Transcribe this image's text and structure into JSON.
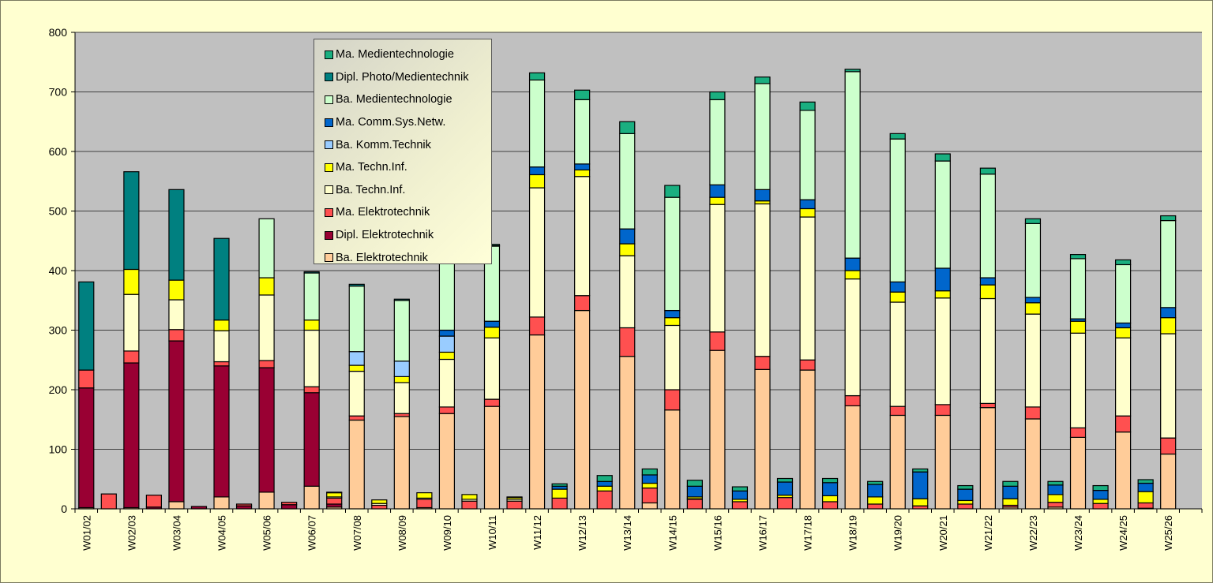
{
  "chart_data": {
    "type": "bar",
    "stacked": true,
    "title": "",
    "xlabel": "",
    "ylabel": "",
    "ylim": [
      0,
      800
    ],
    "yticks": [
      "0",
      "100",
      "200",
      "300",
      "400",
      "500",
      "600",
      "700",
      "800"
    ],
    "grid": true,
    "legend_position": "top-left",
    "series": [
      {
        "name": "Ba. Elektrotechnik",
        "color": "#FFCC99"
      },
      {
        "name": "Dipl. Elektrotechnik",
        "color": "#990033"
      },
      {
        "name": "Ma. Elektrotechnik",
        "color": "#FF5050"
      },
      {
        "name": "Ba. Techn.Inf.",
        "color": "#FFFFCC"
      },
      {
        "name": "Ma. Techn.Inf.",
        "color": "#FFFF00"
      },
      {
        "name": "Ba. Komm.Technik",
        "color": "#99CCFF"
      },
      {
        "name": "Ma. Comm.Sys.Netw.",
        "color": "#0066CC"
      },
      {
        "name": "Ba. Medientechnologie",
        "color": "#CCFFCC"
      },
      {
        "name": "Dipl. Photo/Medientechnik",
        "color": "#008080"
      },
      {
        "name": "Ma. Medientechnologie",
        "color": "#1AAF80"
      }
    ],
    "bars": [
      {
        "category": "W01/02",
        "values": [
          2,
          201,
          30,
          0,
          0,
          0,
          0,
          0,
          148,
          0
        ]
      },
      {
        "category": "",
        "values": [
          0,
          0,
          25,
          0,
          0,
          0,
          0,
          0,
          0,
          0
        ]
      },
      {
        "category": "W02/03",
        "values": [
          2,
          243,
          20,
          95,
          42,
          0,
          0,
          0,
          164,
          0
        ]
      },
      {
        "category": "",
        "values": [
          0,
          3,
          20,
          0,
          0,
          0,
          0,
          0,
          0,
          0
        ]
      },
      {
        "category": "W03/04",
        "values": [
          12,
          270,
          19,
          50,
          33,
          0,
          0,
          0,
          152,
          0
        ]
      },
      {
        "category": "",
        "values": [
          0,
          4,
          0,
          0,
          0,
          0,
          0,
          0,
          0,
          0
        ]
      },
      {
        "category": "W04/05",
        "values": [
          20,
          220,
          7,
          52,
          18,
          0,
          0,
          0,
          137,
          0
        ]
      },
      {
        "category": "",
        "values": [
          0,
          5,
          3,
          0,
          0,
          0,
          0,
          0,
          0,
          0
        ]
      },
      {
        "category": "W05/06",
        "values": [
          28,
          209,
          12,
          110,
          29,
          0,
          0,
          99,
          0,
          0
        ]
      },
      {
        "category": "",
        "values": [
          0,
          7,
          4,
          0,
          0,
          0,
          0,
          0,
          0,
          0
        ]
      },
      {
        "category": "W06/07",
        "values": [
          38,
          157,
          10,
          95,
          17,
          0,
          0,
          79,
          2,
          0
        ]
      },
      {
        "category": "",
        "values": [
          3,
          5,
          10,
          2,
          7,
          0,
          0,
          0,
          1,
          0
        ]
      },
      {
        "category": "W07/08",
        "values": [
          149,
          0,
          7,
          75,
          10,
          23,
          0,
          110,
          3,
          0
        ]
      },
      {
        "category": "",
        "values": [
          0,
          0,
          6,
          3,
          6,
          0,
          0,
          0,
          0,
          0
        ]
      },
      {
        "category": "W08/09",
        "values": [
          155,
          0,
          5,
          52,
          10,
          26,
          0,
          102,
          2,
          0
        ]
      },
      {
        "category": "",
        "values": [
          2,
          0,
          14,
          2,
          9,
          0,
          0,
          0,
          0,
          0
        ]
      },
      {
        "category": "W09/10",
        "values": [
          160,
          0,
          11,
          80,
          12,
          27,
          10,
          128,
          2,
          0
        ]
      },
      {
        "category": "",
        "values": [
          0,
          0,
          13,
          3,
          8,
          0,
          0,
          0,
          0,
          0
        ]
      },
      {
        "category": "W10/11",
        "values": [
          172,
          0,
          12,
          103,
          18,
          0,
          10,
          126,
          1,
          2
        ]
      },
      {
        "category": "",
        "values": [
          0,
          0,
          13,
          3,
          3,
          0,
          0,
          0,
          1,
          0
        ]
      },
      {
        "category": "W11/12",
        "values": [
          292,
          0,
          30,
          217,
          22,
          0,
          13,
          146,
          0,
          12
        ]
      },
      {
        "category": "",
        "values": [
          0,
          0,
          18,
          0,
          15,
          0,
          5,
          0,
          0,
          4
        ]
      },
      {
        "category": "W12/13",
        "values": [
          333,
          0,
          25,
          200,
          11,
          0,
          10,
          108,
          0,
          16
        ]
      },
      {
        "category": "",
        "values": [
          0,
          0,
          30,
          0,
          8,
          0,
          8,
          0,
          0,
          10
        ]
      },
      {
        "category": "W13/14",
        "values": [
          256,
          0,
          48,
          121,
          20,
          0,
          25,
          160,
          0,
          20
        ]
      },
      {
        "category": "",
        "values": [
          10,
          0,
          25,
          0,
          8,
          0,
          14,
          0,
          0,
          10
        ]
      },
      {
        "category": "W14/15",
        "values": [
          166,
          0,
          34,
          108,
          13,
          0,
          12,
          190,
          0,
          20
        ]
      },
      {
        "category": "",
        "values": [
          0,
          0,
          16,
          1,
          3,
          0,
          18,
          0,
          0,
          10
        ]
      },
      {
        "category": "W15/16",
        "values": [
          266,
          0,
          31,
          214,
          12,
          0,
          21,
          143,
          0,
          13
        ]
      },
      {
        "category": "",
        "values": [
          0,
          0,
          12,
          0,
          4,
          0,
          14,
          0,
          0,
          7
        ]
      },
      {
        "category": "W16/17",
        "values": [
          234,
          0,
          22,
          256,
          5,
          0,
          19,
          178,
          0,
          11
        ]
      },
      {
        "category": "",
        "values": [
          0,
          0,
          19,
          0,
          4,
          0,
          22,
          0,
          0,
          6
        ]
      },
      {
        "category": "W17/18",
        "values": [
          233,
          0,
          17,
          240,
          14,
          0,
          15,
          150,
          0,
          14
        ]
      },
      {
        "category": "",
        "values": [
          0,
          0,
          12,
          0,
          10,
          0,
          22,
          0,
          0,
          7
        ]
      },
      {
        "category": "W18/19",
        "values": [
          173,
          0,
          17,
          196,
          14,
          0,
          21,
          313,
          0,
          4
        ]
      },
      {
        "category": "",
        "values": [
          0,
          0,
          8,
          0,
          12,
          0,
          21,
          0,
          0,
          5
        ]
      },
      {
        "category": "W19/20",
        "values": [
          157,
          0,
          15,
          175,
          17,
          0,
          17,
          240,
          0,
          9
        ]
      },
      {
        "category": "",
        "values": [
          0,
          0,
          5,
          0,
          12,
          0,
          45,
          0,
          0,
          5
        ]
      },
      {
        "category": "W20/21",
        "values": [
          157,
          0,
          18,
          179,
          12,
          0,
          38,
          180,
          0,
          12
        ]
      },
      {
        "category": "",
        "values": [
          0,
          0,
          8,
          0,
          6,
          0,
          19,
          0,
          0,
          6
        ]
      },
      {
        "category": "W21/22",
        "values": [
          170,
          0,
          7,
          176,
          23,
          0,
          12,
          174,
          0,
          10
        ]
      },
      {
        "category": "",
        "values": [
          3,
          0,
          3,
          0,
          11,
          0,
          21,
          0,
          0,
          8
        ]
      },
      {
        "category": "W22/23",
        "values": [
          151,
          0,
          20,
          156,
          19,
          0,
          9,
          124,
          0,
          8
        ]
      },
      {
        "category": "",
        "values": [
          3,
          0,
          8,
          0,
          13,
          0,
          16,
          0,
          0,
          6
        ]
      },
      {
        "category": "W23/24",
        "values": [
          120,
          0,
          16,
          159,
          20,
          0,
          4,
          101,
          0,
          7
        ]
      },
      {
        "category": "",
        "values": [
          0,
          0,
          9,
          0,
          7,
          0,
          15,
          0,
          0,
          8
        ]
      },
      {
        "category": "W24/25",
        "values": [
          129,
          0,
          27,
          131,
          17,
          0,
          8,
          98,
          0,
          8
        ]
      },
      {
        "category": "",
        "values": [
          0,
          1,
          9,
          0,
          19,
          0,
          14,
          0,
          0,
          6
        ]
      },
      {
        "category": "W25/26",
        "values": [
          92,
          0,
          27,
          175,
          27,
          0,
          17,
          146,
          0,
          8
        ]
      }
    ]
  }
}
